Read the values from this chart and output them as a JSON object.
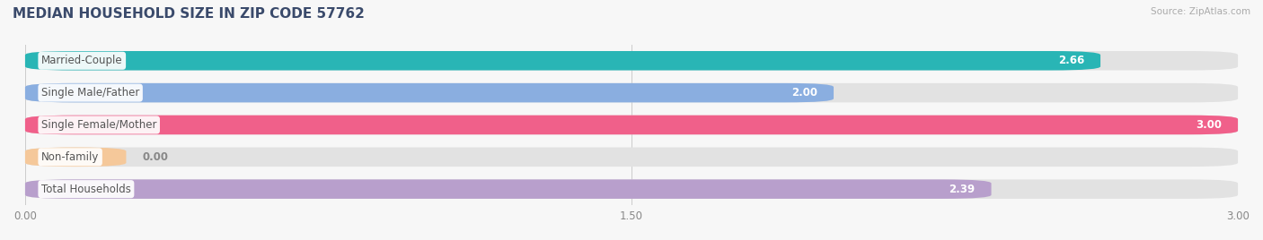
{
  "title": "MEDIAN HOUSEHOLD SIZE IN ZIP CODE 57762",
  "source": "Source: ZipAtlas.com",
  "categories": [
    "Married-Couple",
    "Single Male/Father",
    "Single Female/Mother",
    "Non-family",
    "Total Households"
  ],
  "values": [
    2.66,
    2.0,
    3.0,
    0.0,
    2.39
  ],
  "bar_colors": [
    "#29b5b5",
    "#8aaee0",
    "#f0608a",
    "#f5c89a",
    "#b89fcc"
  ],
  "background_color": "#f7f7f7",
  "bar_bg_color": "#e2e2e2",
  "xlim": [
    0,
    3.0
  ],
  "xticks": [
    0.0,
    1.5,
    3.0
  ],
  "xtick_labels": [
    "0.00",
    "1.50",
    "3.00"
  ],
  "title_fontsize": 11,
  "label_fontsize": 8.5,
  "value_fontsize": 8.5,
  "bar_height": 0.6,
  "label_color": "#555555",
  "value_color": "#ffffff",
  "value_color_zero": "#888888",
  "title_color": "#3a4a6b",
  "source_color": "#aaaaaa",
  "non_family_stub": 0.25
}
